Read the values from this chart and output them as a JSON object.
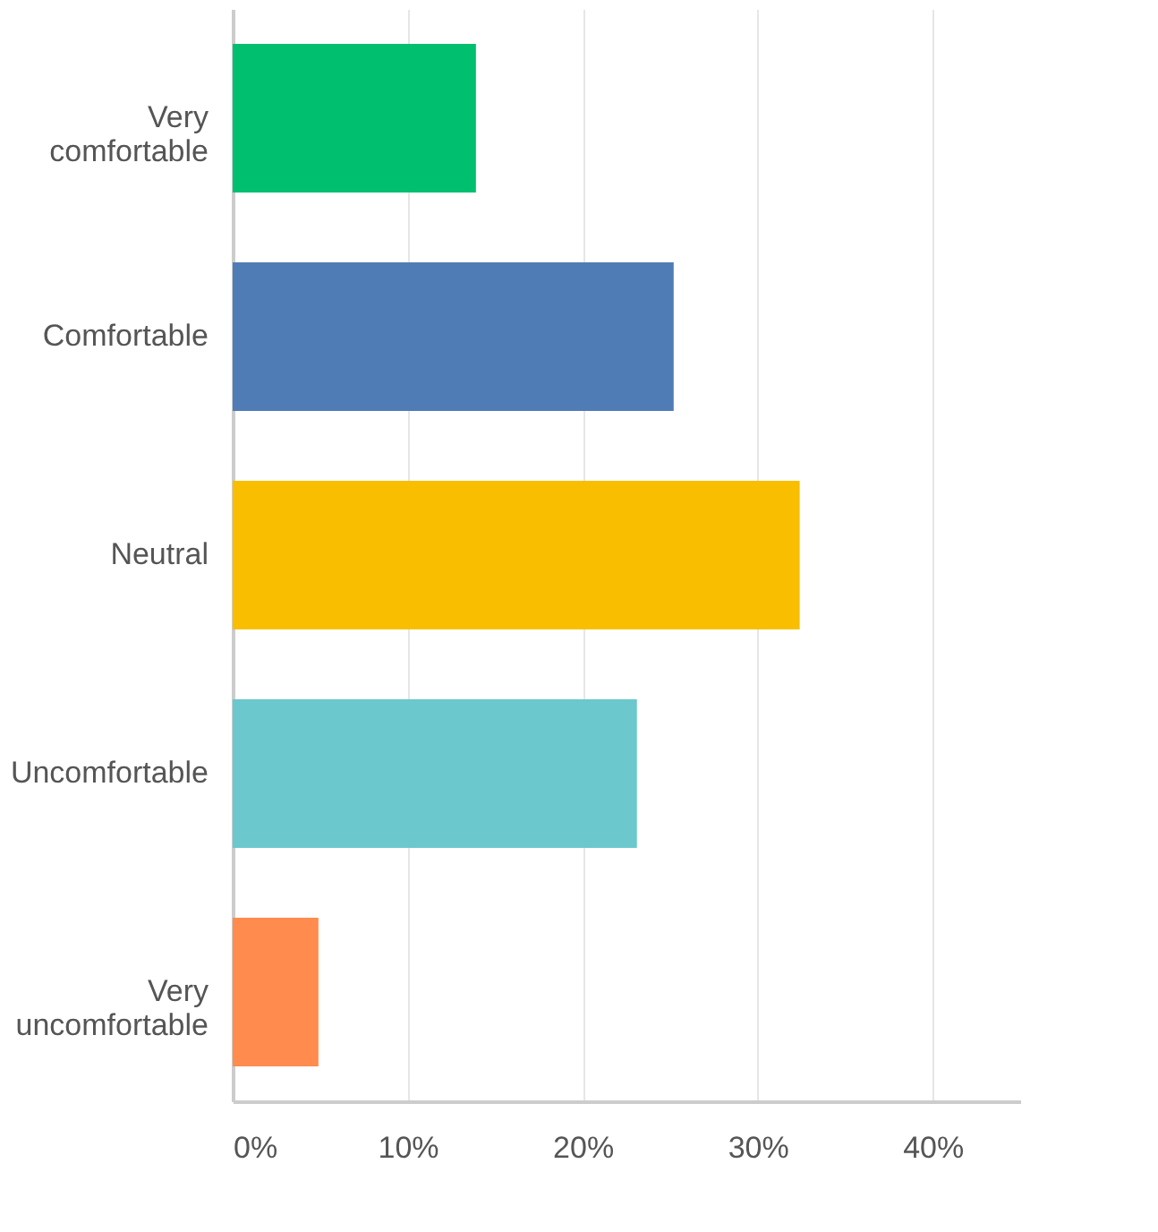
{
  "chart_data": {
    "type": "bar",
    "orientation": "horizontal",
    "categories": [
      "Very comfortable",
      "Comfortable",
      "Neutral",
      "Uncomfortable",
      "Very uncomfortable"
    ],
    "values": [
      13.9,
      25.2,
      32.4,
      23.1,
      4.9
    ],
    "colors": [
      "#00bf6f",
      "#507cb6",
      "#f9be00",
      "#6bc8cd",
      "#ff8b4f"
    ],
    "xlim": [
      0,
      45
    ],
    "xticks": [
      {
        "value": 0,
        "label": "0%"
      },
      {
        "value": 10,
        "label": "10%"
      },
      {
        "value": 20,
        "label": "20%"
      },
      {
        "value": 30,
        "label": "30%"
      },
      {
        "value": 40,
        "label": "40%"
      }
    ],
    "grid": "x"
  }
}
